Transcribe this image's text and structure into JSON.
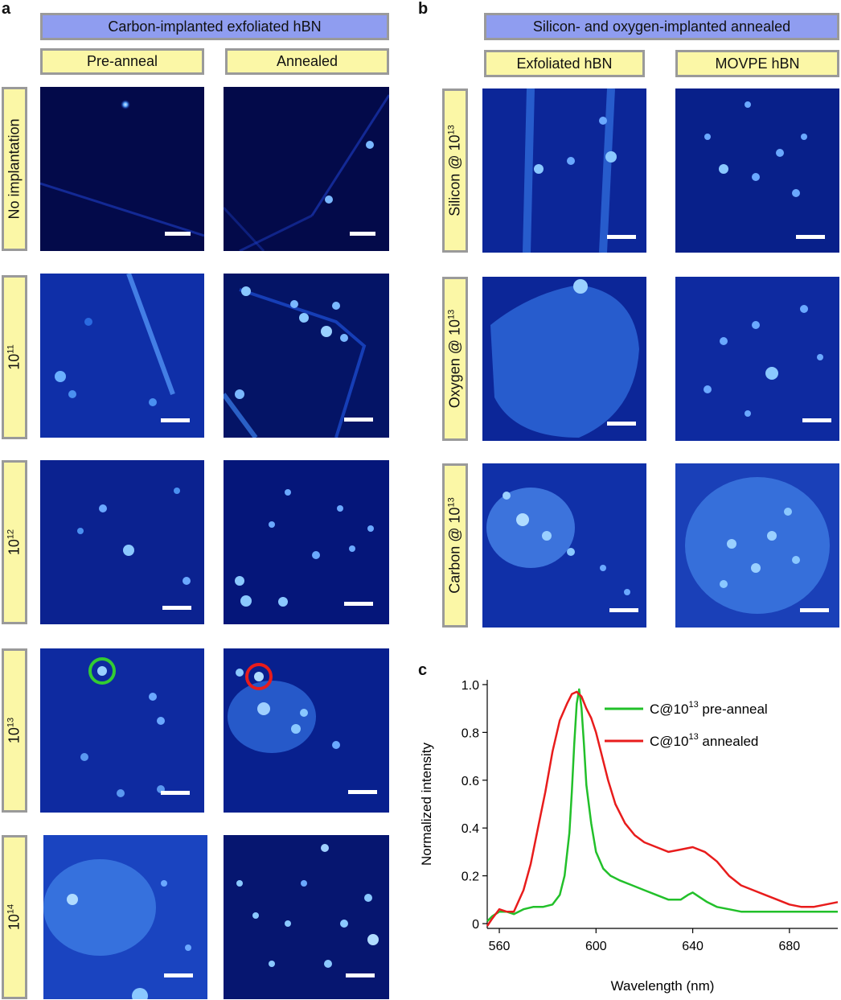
{
  "panels": {
    "a": "a",
    "b": "b",
    "c": "c"
  },
  "panel_a": {
    "header": "Carbon-implanted exfoliated hBN",
    "columns": [
      "Pre-anneal",
      "Annealed"
    ],
    "rows": [
      {
        "label": "No implantation"
      },
      {
        "label_base": "10",
        "label_exp": "11"
      },
      {
        "label_base": "10",
        "label_exp": "12"
      },
      {
        "label_base": "10",
        "label_exp": "13"
      },
      {
        "label_base": "10",
        "label_exp": "14"
      }
    ]
  },
  "panel_b": {
    "header": "Silicon- and oxygen-implanted annealed",
    "columns": [
      "Exfoliated hBN",
      "MOVPE hBN"
    ],
    "rows": [
      {
        "label_base": "Silicon @ 10",
        "label_exp": "13"
      },
      {
        "label_base": "Oxygen @ 10",
        "label_exp": "13"
      },
      {
        "label_base": "Carbon @ 10",
        "label_exp": "13"
      }
    ]
  },
  "colors": {
    "pre_anneal": "#22c02a",
    "annealed": "#e81c1c",
    "header_blue": "#8f9df0",
    "label_yellow": "#fbf7a6"
  },
  "chart_data": {
    "type": "line",
    "xlabel": "Wavelength (nm)",
    "ylabel": "Normalized intensity",
    "xlim": [
      555,
      700
    ],
    "ylim": [
      -0.02,
      1.02
    ],
    "xticks": [
      560,
      600,
      640,
      680
    ],
    "yticks": [
      0,
      0.2,
      0.4,
      0.6,
      0.8,
      1.0
    ],
    "ytick_labels": [
      "0",
      "0.2",
      "0.4",
      "0.6",
      "0.8",
      "1.0"
    ],
    "legend_position": "top-right",
    "series": [
      {
        "name_prefix": "C@10",
        "name_exp": "13",
        "name_suffix": " pre-anneal",
        "color": "#22c02a",
        "x": [
          555,
          557,
          560,
          563,
          566,
          570,
          574,
          578,
          582,
          585,
          587,
          589,
          590,
          591,
          592,
          593,
          594,
          595,
          596,
          598,
          600,
          603,
          606,
          610,
          615,
          620,
          625,
          630,
          635,
          638,
          640,
          643,
          646,
          650,
          655,
          660,
          665,
          670,
          675,
          680,
          685,
          690,
          695,
          700
        ],
        "y": [
          0.01,
          0.03,
          0.05,
          0.05,
          0.04,
          0.06,
          0.07,
          0.07,
          0.08,
          0.12,
          0.2,
          0.38,
          0.55,
          0.75,
          0.92,
          0.98,
          0.9,
          0.75,
          0.58,
          0.42,
          0.3,
          0.23,
          0.2,
          0.18,
          0.16,
          0.14,
          0.12,
          0.1,
          0.1,
          0.12,
          0.13,
          0.11,
          0.09,
          0.07,
          0.06,
          0.05,
          0.05,
          0.05,
          0.05,
          0.05,
          0.05,
          0.05,
          0.05,
          0.05
        ]
      },
      {
        "name_prefix": "C@10",
        "name_exp": "13",
        "name_suffix": " annealed",
        "color": "#e81c1c",
        "x": [
          555,
          557,
          560,
          563,
          566,
          570,
          573,
          576,
          579,
          582,
          585,
          588,
          590,
          592,
          594,
          596,
          598,
          600,
          602,
          605,
          608,
          612,
          616,
          620,
          625,
          630,
          635,
          640,
          645,
          650,
          655,
          660,
          665,
          670,
          675,
          680,
          685,
          690,
          695,
          700
        ],
        "y": [
          -0.01,
          0.02,
          0.06,
          0.05,
          0.05,
          0.14,
          0.25,
          0.4,
          0.55,
          0.72,
          0.85,
          0.92,
          0.96,
          0.97,
          0.95,
          0.9,
          0.86,
          0.8,
          0.72,
          0.6,
          0.5,
          0.42,
          0.37,
          0.34,
          0.32,
          0.3,
          0.31,
          0.32,
          0.3,
          0.26,
          0.2,
          0.16,
          0.14,
          0.12,
          0.1,
          0.08,
          0.07,
          0.07,
          0.08,
          0.09
        ]
      }
    ]
  }
}
